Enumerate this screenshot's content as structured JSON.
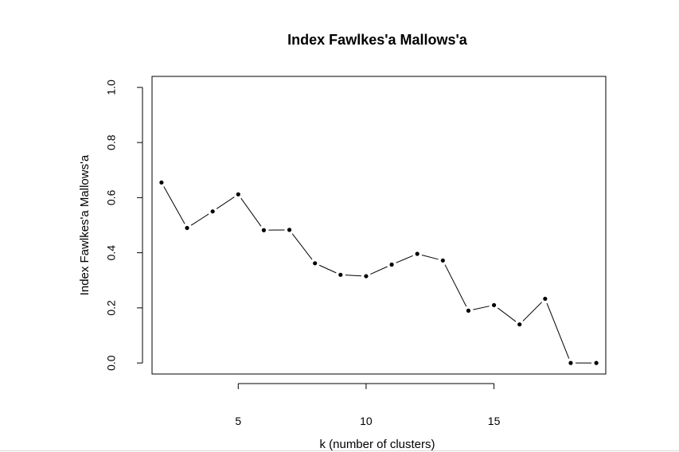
{
  "chart_data": {
    "type": "line",
    "title": "Index Fawlkes'a Mallows'a",
    "xlabel": "k (number of clusters)",
    "ylabel": "Index Fawlkes'a Mallows'a",
    "x": [
      2,
      3,
      4,
      5,
      6,
      7,
      8,
      9,
      10,
      11,
      12,
      13,
      14,
      15,
      16,
      17,
      18,
      19
    ],
    "series": [
      {
        "values": [
          0.655,
          0.49,
          0.55,
          0.612,
          0.482,
          0.483,
          0.362,
          0.32,
          0.315,
          0.357,
          0.396,
          0.372,
          0.19,
          0.21,
          0.14,
          0.233,
          0.0,
          0.0
        ]
      }
    ],
    "xticks": [
      "5",
      "10",
      "15"
    ],
    "yticks": [
      "0.0",
      "0.2",
      "0.4",
      "0.6",
      "0.8",
      "1.0"
    ],
    "xlim": [
      1.63,
      19.37
    ],
    "ylim": [
      -0.04,
      1.04
    ],
    "grid": false,
    "style": {
      "line_color": "#000000",
      "point_color": "#000000",
      "background": "#ffffff"
    }
  }
}
